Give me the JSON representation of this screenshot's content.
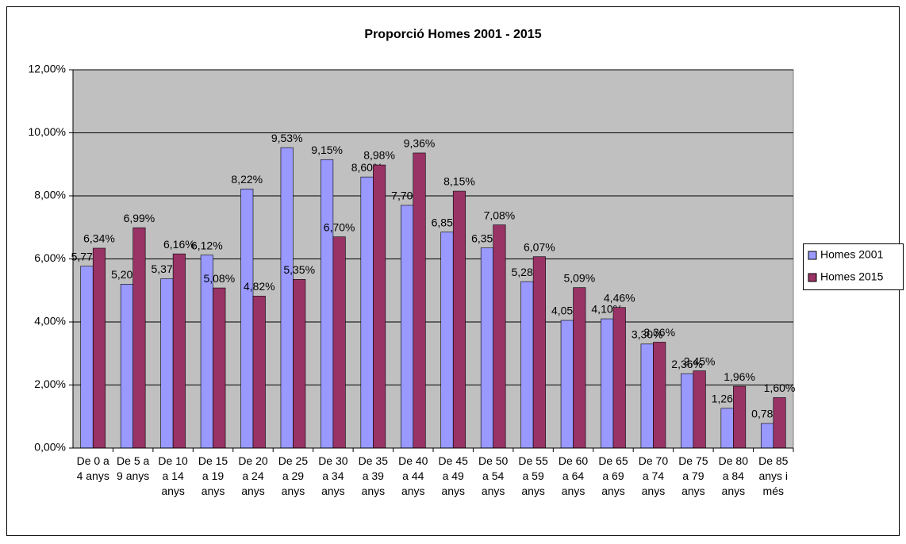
{
  "chart_data": {
    "type": "bar",
    "title": "Proporció Homes 2001 - 2015",
    "categories": [
      "De 0 a 4 anys",
      "De 5 a 9 anys",
      "De 10 a 14 anys",
      "De 15 a 19 anys",
      "De 20 a 24 anys",
      "De 25 a 29 anys",
      "De 30 a 34 anys",
      "De 35 a 39 anys",
      "De 40 a 44 anys",
      "De 45 a 49 anys",
      "De 50 a 54 anys",
      "De 55 a 59 anys",
      "De 60 a 64 anys",
      "De 65 a 69 anys",
      "De 70 a 74 anys",
      "De 75 a 79 anys",
      "De 80 a 84 anys",
      "De 85 anys i més"
    ],
    "series": [
      {
        "name": "Homes 2001",
        "color": "#9999ff",
        "values": [
          5.77,
          5.2,
          5.37,
          6.12,
          8.22,
          9.53,
          9.15,
          8.6,
          7.7,
          6.85,
          6.35,
          5.28,
          4.05,
          4.1,
          3.3,
          2.36,
          1.26,
          0.78
        ],
        "value_labels": [
          "5,77%",
          "5,20%",
          "5,37%",
          "6,12%",
          "8,22%",
          "9,53%",
          "9,15%",
          "8,60%",
          "7,70%",
          "6,85%",
          "6,35%",
          "5,28%",
          "4,05%",
          "4,10%",
          "3,30%",
          "2,36%",
          "1,26%",
          "0,78%"
        ]
      },
      {
        "name": "Homes 2015",
        "color": "#993366",
        "values": [
          6.34,
          6.99,
          6.16,
          5.08,
          4.82,
          5.35,
          6.7,
          8.98,
          9.36,
          8.15,
          7.08,
          6.07,
          5.09,
          4.46,
          3.36,
          2.45,
          1.96,
          1.6
        ],
        "value_labels": [
          "6,34%",
          "6,99%",
          "6,16%",
          "5,08%",
          "4,82%",
          "5,35%",
          "6,70%",
          "8,98%",
          "9,36%",
          "8,15%",
          "7,08%",
          "6,07%",
          "5,09%",
          "4,46%",
          "3,36%",
          "2,45%",
          "1,96%",
          "1,60%"
        ]
      }
    ],
    "ylim": [
      0,
      12
    ],
    "yticks": [
      {
        "value": 0,
        "label": "0,00%"
      },
      {
        "value": 2,
        "label": "2,00%"
      },
      {
        "value": 4,
        "label": "4,00%"
      },
      {
        "value": 6,
        "label": "6,00%"
      },
      {
        "value": 8,
        "label": "8,00%"
      },
      {
        "value": 10,
        "label": "10,00%"
      },
      {
        "value": 12,
        "label": "12,00%"
      }
    ],
    "grid": true,
    "legend": "right"
  }
}
